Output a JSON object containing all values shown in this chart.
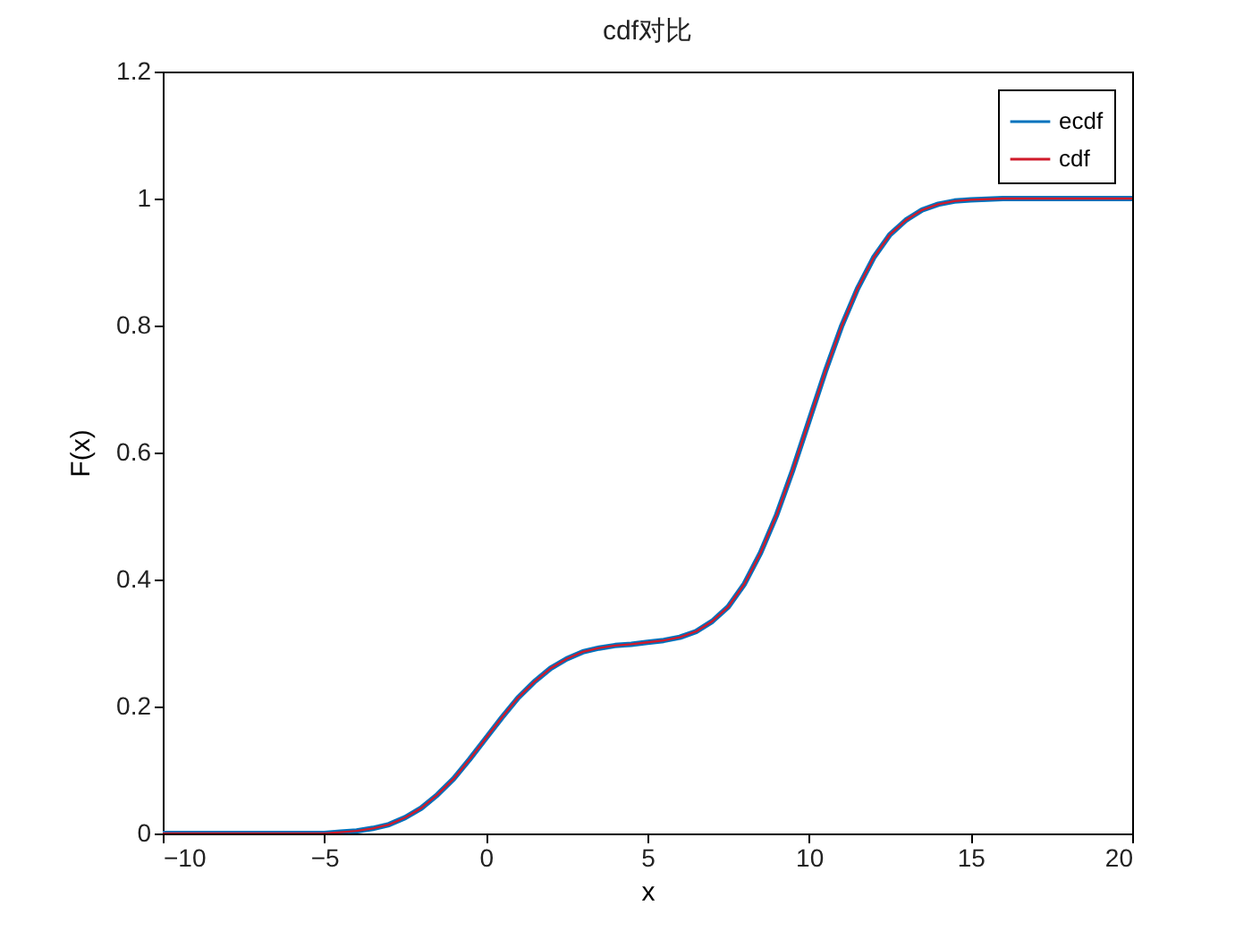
{
  "chart_data": {
    "type": "line",
    "title": "cdf对比",
    "xlabel": "x",
    "ylabel": "F(x)",
    "x": [
      -10,
      -9,
      -8,
      -7,
      -6,
      -5,
      -4.5,
      -4,
      -3.5,
      -3,
      -2.5,
      -2,
      -1.5,
      -1,
      -0.5,
      0,
      0.5,
      1,
      1.5,
      2,
      2.5,
      3,
      3.5,
      4,
      4.5,
      5,
      5.5,
      6,
      6.5,
      7,
      7.5,
      8,
      8.5,
      9,
      9.5,
      10,
      10.5,
      11,
      11.5,
      12,
      12.5,
      13,
      13.5,
      14,
      14.5,
      15,
      15.5,
      16,
      17,
      18,
      19,
      20
    ],
    "series": [
      {
        "name": "ecdf",
        "color": "#0072bd",
        "values": [
          0,
          0,
          0,
          0,
          0,
          0,
          0.002,
          0.004,
          0.008,
          0.014,
          0.025,
          0.04,
          0.061,
          0.086,
          0.117,
          0.15,
          0.183,
          0.214,
          0.239,
          0.26,
          0.275,
          0.286,
          0.292,
          0.296,
          0.298,
          0.301,
          0.304,
          0.309,
          0.318,
          0.334,
          0.357,
          0.393,
          0.442,
          0.502,
          0.573,
          0.65,
          0.727,
          0.798,
          0.858,
          0.907,
          0.943,
          0.966,
          0.982,
          0.991,
          0.996,
          0.998,
          0.999,
          1,
          1,
          1,
          1,
          1
        ]
      },
      {
        "name": "cdf",
        "color": "#d01a2a",
        "values": [
          0,
          0,
          0,
          0,
          0,
          0,
          0.002,
          0.004,
          0.008,
          0.014,
          0.025,
          0.04,
          0.061,
          0.086,
          0.117,
          0.15,
          0.183,
          0.214,
          0.239,
          0.26,
          0.275,
          0.286,
          0.292,
          0.296,
          0.298,
          0.301,
          0.304,
          0.309,
          0.318,
          0.334,
          0.357,
          0.393,
          0.442,
          0.502,
          0.573,
          0.65,
          0.727,
          0.798,
          0.858,
          0.907,
          0.943,
          0.966,
          0.982,
          0.991,
          0.996,
          0.998,
          0.999,
          1,
          1,
          1,
          1,
          1
        ]
      }
    ],
    "xlim": [
      -10,
      20
    ],
    "xticks": [
      -10,
      -5,
      0,
      5,
      10,
      15,
      20
    ],
    "ylim": [
      0,
      1.2
    ],
    "yticks": [
      0,
      0.2,
      0.4,
      0.6,
      0.8,
      1,
      1.2
    ],
    "legend": "top right"
  }
}
